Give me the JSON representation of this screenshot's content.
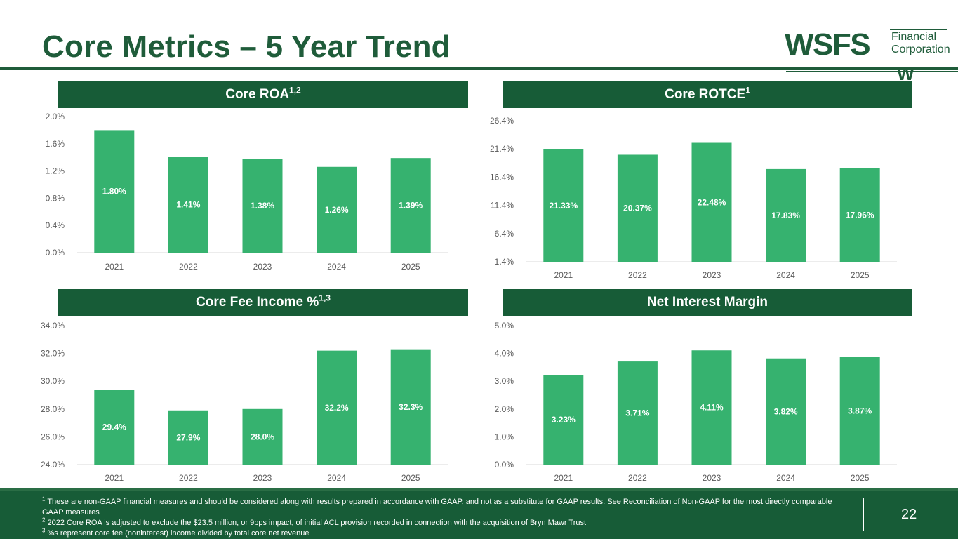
{
  "title": "Core Metrics – 5 Year Trend",
  "logo": {
    "mark": "WSFS",
    "line1": "Financial",
    "line2": "Corporation",
    "w": "W"
  },
  "colors": {
    "header": "#175c37",
    "bar": "#36b26f",
    "grid": "#d9d9d9",
    "title": "#1f5c3a"
  },
  "panels": [
    {
      "title": "Core ROA",
      "sup": "1,2"
    },
    {
      "title": "Core ROTCE",
      "sup": "1"
    },
    {
      "title": "Core Fee Income %",
      "sup": "1,3"
    },
    {
      "title": "Net Interest Margin",
      "sup": ""
    }
  ],
  "chart_data": [
    {
      "type": "bar",
      "title": "Core ROA",
      "categories": [
        "2021",
        "2022",
        "2023",
        "2024",
        "2025"
      ],
      "values": [
        1.8,
        1.41,
        1.38,
        1.26,
        1.39
      ],
      "data_labels": [
        "1.80%",
        "1.41%",
        "1.38%",
        "1.26%",
        "1.39%"
      ],
      "yticks": [
        "0.0%",
        "0.4%",
        "0.8%",
        "1.2%",
        "1.6%",
        "2.0%"
      ],
      "ylim": [
        0,
        2.0
      ],
      "grid": false
    },
    {
      "type": "bar",
      "title": "Core ROTCE",
      "categories": [
        "2021",
        "2022",
        "2023",
        "2024",
        "2025"
      ],
      "values": [
        21.33,
        20.37,
        22.48,
        17.83,
        17.96
      ],
      "data_labels": [
        "21.33%",
        "20.37%",
        "22.48%",
        "17.83%",
        "17.96%"
      ],
      "yticks": [
        "1.4%",
        "6.4%",
        "11.4%",
        "16.4%",
        "21.4%",
        "26.4%"
      ],
      "ylim": [
        1.4,
        26.4
      ],
      "grid": false
    },
    {
      "type": "bar",
      "title": "Core Fee Income %",
      "categories": [
        "2021",
        "2022",
        "2023",
        "2024",
        "2025"
      ],
      "values": [
        29.4,
        27.9,
        28.0,
        32.2,
        32.3
      ],
      "data_labels": [
        "29.4%",
        "27.9%",
        "28.0%",
        "32.2%",
        "32.3%"
      ],
      "yticks": [
        "24.0%",
        "26.0%",
        "28.0%",
        "30.0%",
        "32.0%",
        "34.0%"
      ],
      "ylim": [
        24.0,
        34.0
      ],
      "grid": false
    },
    {
      "type": "bar",
      "title": "Net Interest Margin",
      "categories": [
        "2021",
        "2022",
        "2023",
        "2024",
        "2025"
      ],
      "values": [
        3.23,
        3.71,
        4.11,
        3.82,
        3.87
      ],
      "data_labels": [
        "3.23%",
        "3.71%",
        "4.11%",
        "3.82%",
        "3.87%"
      ],
      "yticks": [
        "0.0%",
        "1.0%",
        "2.0%",
        "3.0%",
        "4.0%",
        "5.0%"
      ],
      "ylim": [
        0,
        5.0
      ],
      "grid": false
    }
  ],
  "footnotes": [
    {
      "mark": "1",
      "text": "These are non-GAAP financial measures and should be considered along with results prepared in accordance with GAAP, and not as a substitute for GAAP results. See Reconciliation of Non-GAAP for the most directly comparable GAAP measures"
    },
    {
      "mark": "2",
      "text": "2022 Core ROA is adjusted to exclude the $23.5 million, or 9bps impact, of initial ACL provision recorded in connection with the acquisition of Bryn Mawr Trust"
    },
    {
      "mark": "3",
      "text": "%s represent core fee (noninterest) income divided by total core net revenue"
    }
  ],
  "page_number": "22"
}
